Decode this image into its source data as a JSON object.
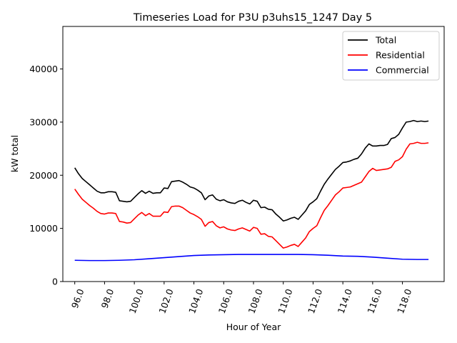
{
  "chart_data": {
    "type": "line",
    "title": "Timeseries Load for P3U p3uhs15_1247  Day 5",
    "xlabel": "Hour of Year",
    "ylabel": "kW total",
    "xlim": [
      95.2,
      120.8
    ],
    "ylim": [
      0,
      48000
    ],
    "xticks": [
      96,
      98,
      100,
      102,
      104,
      106,
      108,
      110,
      112,
      114,
      116,
      118
    ],
    "xtick_labels": [
      "96.0",
      "98.0",
      "100.0",
      "102.0",
      "104.0",
      "106.0",
      "108.0",
      "110.0",
      "112.0",
      "114.0",
      "116.0",
      "118.0"
    ],
    "yticks": [
      0,
      10000,
      20000,
      30000,
      40000
    ],
    "ytick_labels": [
      "0",
      "10000",
      "20000",
      "30000",
      "40000"
    ],
    "legend_position": "top-right",
    "series": [
      {
        "name": "Total",
        "color": "#000000",
        "x": [
          96.0,
          96.25,
          96.5,
          96.75,
          97.0,
          97.25,
          97.5,
          97.75,
          98.0,
          98.25,
          98.5,
          98.75,
          99.0,
          99.25,
          99.5,
          99.75,
          100.0,
          100.25,
          100.5,
          100.75,
          101.0,
          101.25,
          101.5,
          101.75,
          102.0,
          102.25,
          102.5,
          102.75,
          103.0,
          103.25,
          103.5,
          103.75,
          104.0,
          104.25,
          104.5,
          104.75,
          105.0,
          105.25,
          105.5,
          105.75,
          106.0,
          106.25,
          106.5,
          106.75,
          107.0,
          107.25,
          107.5,
          107.75,
          108.0,
          108.25,
          108.5,
          108.75,
          109.0,
          109.25,
          109.5,
          109.75,
          110.0,
          110.25,
          110.5,
          110.75,
          111.0,
          111.25,
          111.5,
          111.75,
          112.0,
          112.25,
          112.5,
          112.75,
          113.0,
          113.25,
          113.5,
          113.75,
          114.0,
          114.25,
          114.5,
          114.75,
          115.0,
          115.25,
          115.5,
          115.75,
          116.0,
          116.25,
          116.5,
          116.75,
          117.0,
          117.25,
          117.5,
          117.75,
          118.0,
          118.25,
          118.5,
          118.75,
          119.0,
          119.25,
          119.5,
          119.75
        ],
        "values": [
          21400,
          20300,
          19400,
          18800,
          18200,
          17600,
          17000,
          16700,
          16700,
          16900,
          16900,
          16800,
          15200,
          15100,
          15000,
          15100,
          15800,
          16500,
          17100,
          16600,
          17000,
          16600,
          16700,
          16700,
          17600,
          17500,
          18800,
          18900,
          19000,
          18700,
          18300,
          17800,
          17600,
          17200,
          16700,
          15400,
          16100,
          16300,
          15500,
          15200,
          15400,
          15000,
          14800,
          14700,
          15100,
          15300,
          14900,
          14600,
          15300,
          15100,
          13900,
          14000,
          13600,
          13500,
          12700,
          12100,
          11400,
          11600,
          11900,
          12100,
          11700,
          12500,
          13300,
          14500,
          15000,
          15600,
          17000,
          18300,
          19300,
          20200,
          21100,
          21700,
          22400,
          22500,
          22700,
          23000,
          23200,
          24000,
          25100,
          25900,
          25500,
          25500,
          25600,
          25600,
          25800,
          26900,
          27100,
          27700,
          28900,
          30000,
          30100,
          30300,
          30100,
          30200,
          30100,
          30200
        ]
      },
      {
        "name": "Residential",
        "color": "#ff0000",
        "x": [
          96.0,
          96.25,
          96.5,
          96.75,
          97.0,
          97.25,
          97.5,
          97.75,
          98.0,
          98.25,
          98.5,
          98.75,
          99.0,
          99.25,
          99.5,
          99.75,
          100.0,
          100.25,
          100.5,
          100.75,
          101.0,
          101.25,
          101.5,
          101.75,
          102.0,
          102.25,
          102.5,
          102.75,
          103.0,
          103.25,
          103.5,
          103.75,
          104.0,
          104.25,
          104.5,
          104.75,
          105.0,
          105.25,
          105.5,
          105.75,
          106.0,
          106.25,
          106.5,
          106.75,
          107.0,
          107.25,
          107.5,
          107.75,
          108.0,
          108.25,
          108.5,
          108.75,
          109.0,
          109.25,
          109.5,
          109.75,
          110.0,
          110.25,
          110.5,
          110.75,
          111.0,
          111.25,
          111.5,
          111.75,
          112.0,
          112.25,
          112.5,
          112.75,
          113.0,
          113.25,
          113.5,
          113.75,
          114.0,
          114.25,
          114.5,
          114.75,
          115.0,
          115.25,
          115.5,
          115.75,
          116.0,
          116.25,
          116.5,
          116.75,
          117.0,
          117.25,
          117.5,
          117.75,
          118.0,
          118.25,
          118.5,
          118.75,
          119.0,
          119.25,
          119.5,
          119.75
        ],
        "values": [
          17400,
          16400,
          15500,
          14900,
          14300,
          13800,
          13200,
          12800,
          12700,
          12900,
          12900,
          12800,
          11300,
          11200,
          11000,
          11100,
          11800,
          12500,
          13000,
          12400,
          12800,
          12300,
          12300,
          12300,
          13100,
          13000,
          14100,
          14200,
          14200,
          13900,
          13400,
          12900,
          12600,
          12200,
          11700,
          10400,
          11100,
          11300,
          10500,
          10100,
          10300,
          9900,
          9700,
          9600,
          9900,
          10100,
          9800,
          9500,
          10200,
          10000,
          8900,
          9000,
          8500,
          8400,
          7700,
          7000,
          6300,
          6500,
          6800,
          7000,
          6600,
          7400,
          8200,
          9400,
          10000,
          10500,
          12000,
          13400,
          14300,
          15300,
          16300,
          16900,
          17600,
          17700,
          17800,
          18100,
          18400,
          18700,
          19700,
          20700,
          21300,
          20900,
          21000,
          21100,
          21200,
          21500,
          22600,
          22900,
          23500,
          24900,
          25900,
          26000,
          26200,
          26000,
          26000,
          26100
        ]
      },
      {
        "name": "Commercial",
        "color": "#0000ff",
        "x": [
          96,
          97,
          98,
          99,
          100,
          101,
          102,
          103,
          104,
          105,
          106,
          107,
          108,
          109,
          110,
          111,
          112,
          113,
          114,
          115,
          116,
          117,
          118,
          119,
          119.75
        ],
        "values": [
          4000,
          3950,
          3950,
          4000,
          4100,
          4300,
          4500,
          4700,
          4900,
          5000,
          5050,
          5100,
          5100,
          5100,
          5100,
          5100,
          5050,
          4950,
          4800,
          4750,
          4600,
          4400,
          4200,
          4150,
          4150
        ]
      }
    ]
  }
}
